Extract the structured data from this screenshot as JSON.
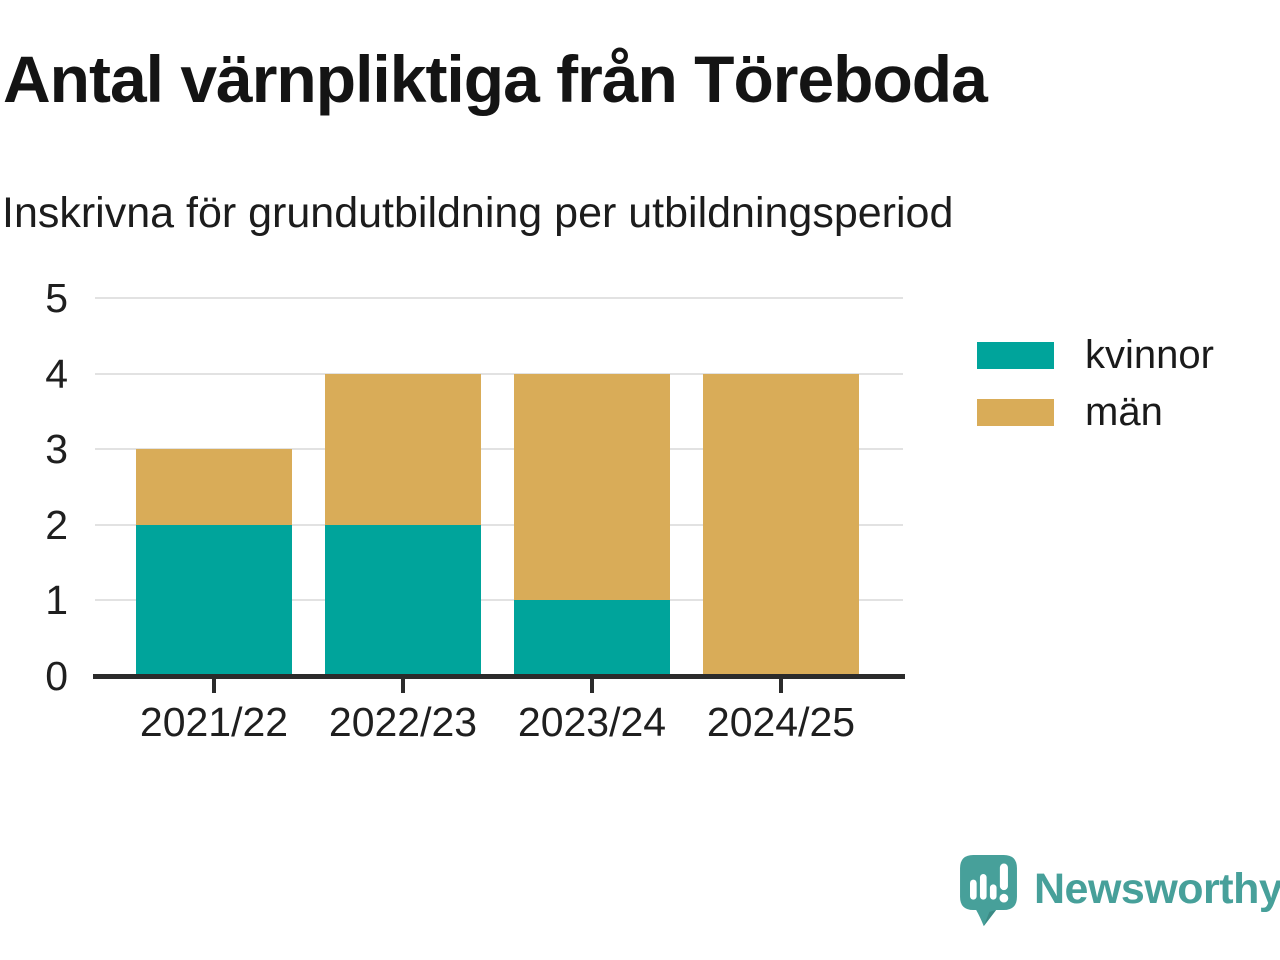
{
  "header": {
    "title": "Antal värnpliktiga från Töreboda",
    "subtitle": "Inskrivna för grundutbildning per utbildningsperiod"
  },
  "chart_data": {
    "type": "bar",
    "stacked": true,
    "title": "Antal värnpliktiga från Töreboda",
    "subtitle": "Inskrivna för grundutbildning per utbildningsperiod",
    "categories": [
      "2021/22",
      "2022/23",
      "2023/24",
      "2024/25"
    ],
    "series": [
      {
        "name": "kvinnor",
        "color": "#00A49B",
        "values": [
          2,
          2,
          1,
          0
        ]
      },
      {
        "name": "män",
        "color": "#D9AC58",
        "values": [
          1,
          2,
          3,
          4
        ]
      }
    ],
    "totals": [
      3,
      4,
      4,
      4
    ],
    "xlabel": "",
    "ylabel": "",
    "ylim": [
      0,
      5
    ],
    "yticks": [
      0,
      1,
      2,
      3,
      4,
      5
    ],
    "grid": true,
    "legend_position": "top-right"
  },
  "legend": {
    "items": [
      {
        "label": "kvinnor",
        "color": "#00A49B"
      },
      {
        "label": "män",
        "color": "#D9AC58"
      }
    ]
  },
  "footer": {
    "brand": "Newsworthy",
    "brand_color": "#47A09A"
  },
  "colors": {
    "kvinnor": "#00A49B",
    "man": "#D9AC58",
    "grid_line": "#E2E2E2",
    "axis_line": "#2B2B2B",
    "text": "#1A1A1A",
    "brand_teal": "#47A09A"
  }
}
